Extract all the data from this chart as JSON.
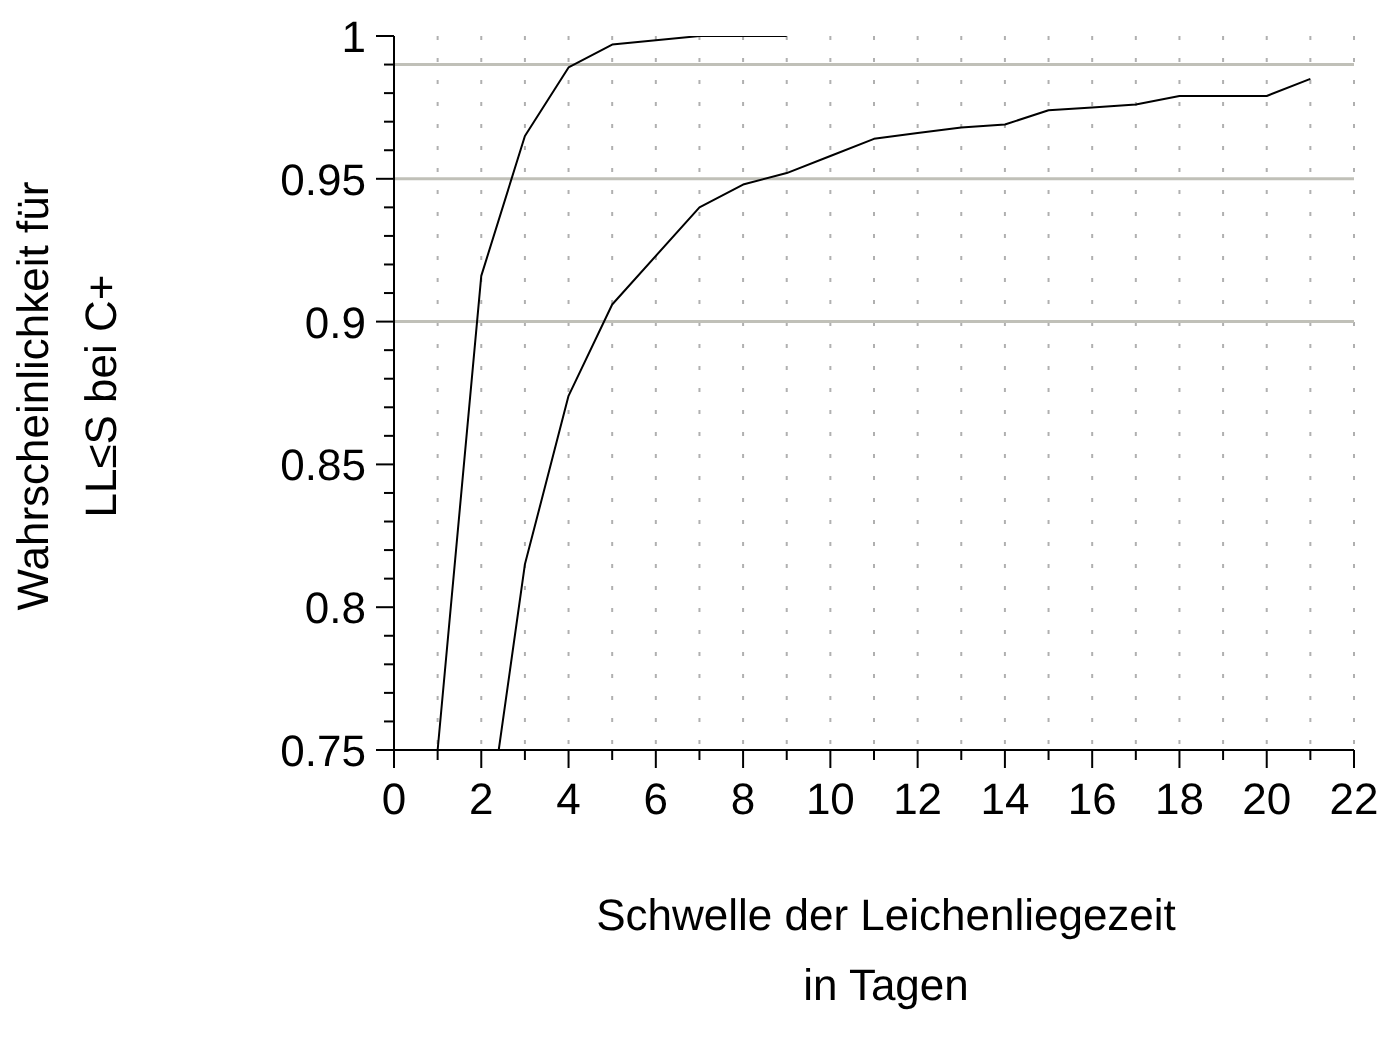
{
  "chart_data": {
    "type": "line",
    "xlabel": "Schwelle der Leichenliegezeit\nin Tagen",
    "ylabel": "Wahrscheinlichkeit für\nLL≤S bei C+",
    "series": [
      {
        "color": "#000000",
        "x": [
          1,
          2,
          3,
          4,
          5,
          7,
          9
        ],
        "values": [
          0.75,
          0.916,
          0.965,
          0.989,
          0.997,
          1.0,
          1.0
        ]
      },
      {
        "color": "#000000",
        "x": [
          2.4,
          3,
          4,
          5,
          7,
          8,
          9,
          10,
          11,
          12,
          13,
          14,
          15,
          16,
          17,
          18,
          19,
          20,
          21
        ],
        "values": [
          0.75,
          0.815,
          0.874,
          0.906,
          0.94,
          0.948,
          0.952,
          0.958,
          0.964,
          0.966,
          0.968,
          0.969,
          0.974,
          0.975,
          0.976,
          0.979,
          0.979,
          0.979,
          0.985
        ]
      }
    ],
    "xlim": [
      0,
      22
    ],
    "xticks": [
      0,
      {
        "value": 1,
        "label": null
      },
      2,
      {
        "value": 3,
        "label": null
      },
      4,
      {
        "value": 5,
        "label": null
      },
      6,
      {
        "value": 7,
        "label": null
      },
      8,
      {
        "value": 9,
        "label": null
      },
      10,
      {
        "value": 11,
        "label": null
      },
      12,
      {
        "value": 13,
        "label": null
      },
      14,
      {
        "value": 15,
        "label": null
      },
      16,
      {
        "value": 17,
        "label": null
      },
      18,
      {
        "value": 19,
        "label": null
      },
      20,
      {
        "value": 21,
        "label": null
      },
      22
    ],
    "ylim": [
      0.75,
      1
    ],
    "yticks": [
      0.75,
      {
        "value": 0.76,
        "label": null
      },
      {
        "value": 0.77,
        "label": null
      },
      {
        "value": 0.78,
        "label": null
      },
      {
        "value": 0.79,
        "label": null
      },
      0.8,
      {
        "value": 0.81,
        "label": null
      },
      {
        "value": 0.82,
        "label": null
      },
      {
        "value": 0.83,
        "label": null
      },
      {
        "value": 0.84,
        "label": null
      },
      0.85,
      {
        "value": 0.86,
        "label": null
      },
      {
        "value": 0.87,
        "label": null
      },
      {
        "value": 0.88,
        "label": null
      },
      {
        "value": 0.89,
        "label": null
      },
      0.9,
      {
        "value": 0.91,
        "label": null
      },
      {
        "value": 0.92,
        "label": null
      },
      {
        "value": 0.93,
        "label": null
      },
      {
        "value": 0.94,
        "label": null
      },
      0.95,
      {
        "value": 0.96,
        "label": null
      },
      {
        "value": 0.97,
        "label": null
      },
      {
        "value": 0.98,
        "label": null
      },
      {
        "value": 0.99,
        "label": null
      },
      1
    ],
    "grid": "x",
    "marker": "none",
    "line_style": "solid",
    "ref_lines": [
      {
        "axis": "y",
        "value": 0.99,
        "color": "#c0c0b8"
      },
      {
        "axis": "y",
        "value": 0.95,
        "color": "#c0c0b8"
      },
      {
        "axis": "y",
        "value": 0.9,
        "color": "#c0c0b8"
      }
    ]
  }
}
